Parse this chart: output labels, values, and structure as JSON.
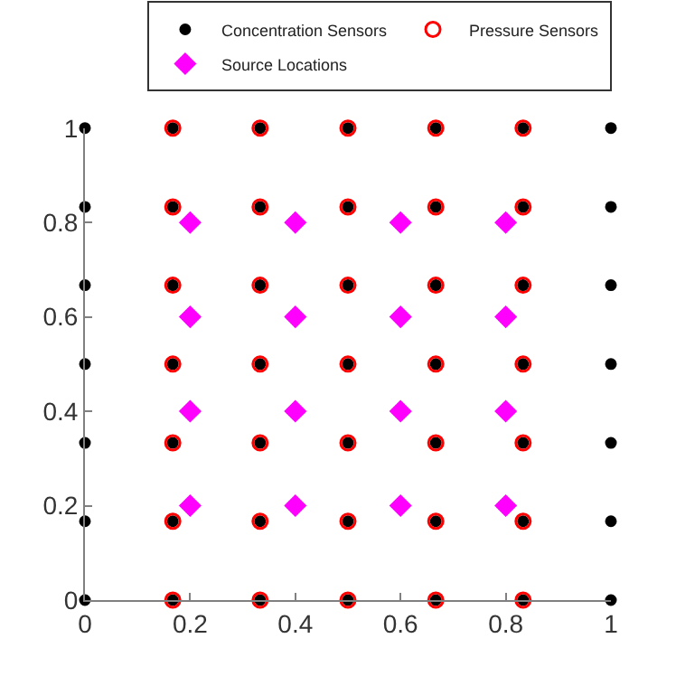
{
  "chart_data": {
    "type": "scatter",
    "xlim": [
      0,
      1
    ],
    "ylim": [
      0,
      1
    ],
    "xticks": [
      0,
      0.2,
      0.4,
      0.6,
      0.8,
      1
    ],
    "yticks": [
      0,
      0.2,
      0.4,
      0.6,
      0.8,
      1
    ],
    "legend": "top",
    "series": [
      {
        "name": "Concentration Sensors",
        "color": "#000000",
        "marker": "circle",
        "x": [
          0,
          0,
          0,
          0,
          0,
          0,
          0,
          0.167,
          0.167,
          0.167,
          0.167,
          0.167,
          0.167,
          0.167,
          0.333,
          0.333,
          0.333,
          0.333,
          0.333,
          0.333,
          0.333,
          0.5,
          0.5,
          0.5,
          0.5,
          0.5,
          0.5,
          0.5,
          0.667,
          0.667,
          0.667,
          0.667,
          0.667,
          0.667,
          0.667,
          0.833,
          0.833,
          0.833,
          0.833,
          0.833,
          0.833,
          0.833,
          1,
          1,
          1,
          1,
          1,
          1,
          1
        ],
        "values": [
          0,
          0.167,
          0.333,
          0.5,
          0.667,
          0.833,
          1,
          0,
          0.167,
          0.333,
          0.5,
          0.667,
          0.833,
          1,
          0,
          0.167,
          0.333,
          0.5,
          0.667,
          0.833,
          1,
          0,
          0.167,
          0.333,
          0.5,
          0.667,
          0.833,
          1,
          0,
          0.167,
          0.333,
          0.5,
          0.667,
          0.833,
          1,
          0,
          0.167,
          0.333,
          0.5,
          0.667,
          0.833,
          1,
          0,
          0.167,
          0.333,
          0.5,
          0.667,
          0.833,
          1
        ]
      },
      {
        "name": "Pressure Sensors",
        "color": "#ff0000",
        "marker": "circle-open",
        "x": [
          0.167,
          0.167,
          0.167,
          0.167,
          0.167,
          0.167,
          0.167,
          0.333,
          0.333,
          0.333,
          0.333,
          0.333,
          0.333,
          0.333,
          0.5,
          0.5,
          0.5,
          0.5,
          0.5,
          0.5,
          0.5,
          0.667,
          0.667,
          0.667,
          0.667,
          0.667,
          0.667,
          0.667,
          0.833,
          0.833,
          0.833,
          0.833,
          0.833,
          0.833,
          0.833
        ],
        "values": [
          0,
          0.167,
          0.333,
          0.5,
          0.667,
          0.833,
          1,
          0,
          0.167,
          0.333,
          0.5,
          0.667,
          0.833,
          1,
          0,
          0.167,
          0.333,
          0.5,
          0.667,
          0.833,
          1,
          0,
          0.167,
          0.333,
          0.5,
          0.667,
          0.833,
          1,
          0,
          0.167,
          0.333,
          0.5,
          0.667,
          0.833,
          1
        ]
      },
      {
        "name": "Source Locations",
        "color": "#ff00ff",
        "marker": "diamond",
        "x": [
          0.2,
          0.2,
          0.2,
          0.2,
          0.4,
          0.4,
          0.4,
          0.4,
          0.6,
          0.6,
          0.6,
          0.6,
          0.8,
          0.8,
          0.8,
          0.8
        ],
        "values": [
          0.2,
          0.4,
          0.6,
          0.8,
          0.2,
          0.4,
          0.6,
          0.8,
          0.2,
          0.4,
          0.6,
          0.8,
          0.2,
          0.4,
          0.6,
          0.8
        ]
      }
    ]
  }
}
